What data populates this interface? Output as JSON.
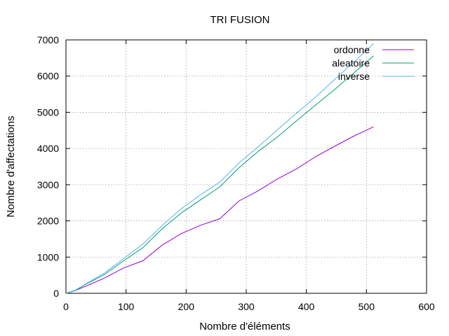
{
  "chart_data": {
    "type": "line",
    "title": "TRI FUSION",
    "xlabel": "Nombre d'éléments",
    "ylabel": "Nombre d'affectations",
    "xlim": [
      0,
      600
    ],
    "ylim": [
      0,
      7000
    ],
    "x_ticks": [
      0,
      100,
      200,
      300,
      400,
      500,
      600
    ],
    "y_ticks": [
      0,
      1000,
      2000,
      3000,
      4000,
      5000,
      6000,
      7000
    ],
    "x_tick_labels": [
      "0",
      "100",
      "200",
      "300",
      "400",
      "500",
      "600"
    ],
    "y_tick_labels": [
      "0",
      "1000",
      "2000",
      "3000",
      "4000",
      "5000",
      "6000",
      "7000"
    ],
    "grid": true,
    "legend_position": "top-right",
    "series": [
      {
        "name": "ordonne",
        "color": "#9400d3",
        "x": [
          0,
          16,
          32,
          64,
          96,
          128,
          160,
          192,
          224,
          256,
          288,
          320,
          352,
          384,
          416,
          448,
          480,
          512
        ],
        "y": [
          0,
          80,
          190,
          420,
          700,
          900,
          1330,
          1650,
          1880,
          2060,
          2550,
          2830,
          3160,
          3440,
          3780,
          4070,
          4350,
          4600
        ]
      },
      {
        "name": "aleatoire",
        "color": "#009e73",
        "x": [
          0,
          16,
          32,
          64,
          96,
          128,
          160,
          192,
          224,
          256,
          288,
          320,
          352,
          384,
          416,
          448,
          480,
          512
        ],
        "y": [
          0,
          80,
          240,
          520,
          900,
          1260,
          1780,
          2220,
          2580,
          2940,
          3470,
          3920,
          4320,
          4770,
          5210,
          5640,
          6100,
          6560
        ]
      },
      {
        "name": "inverse",
        "color": "#56b4e9",
        "x": [
          0,
          16,
          32,
          64,
          96,
          128,
          160,
          192,
          224,
          256,
          288,
          320,
          352,
          384,
          416,
          448,
          480,
          512
        ],
        "y": [
          0,
          90,
          250,
          560,
          960,
          1360,
          1870,
          2340,
          2720,
          3070,
          3600,
          4050,
          4520,
          4980,
          5430,
          5920,
          6400,
          6900
        ]
      }
    ]
  }
}
